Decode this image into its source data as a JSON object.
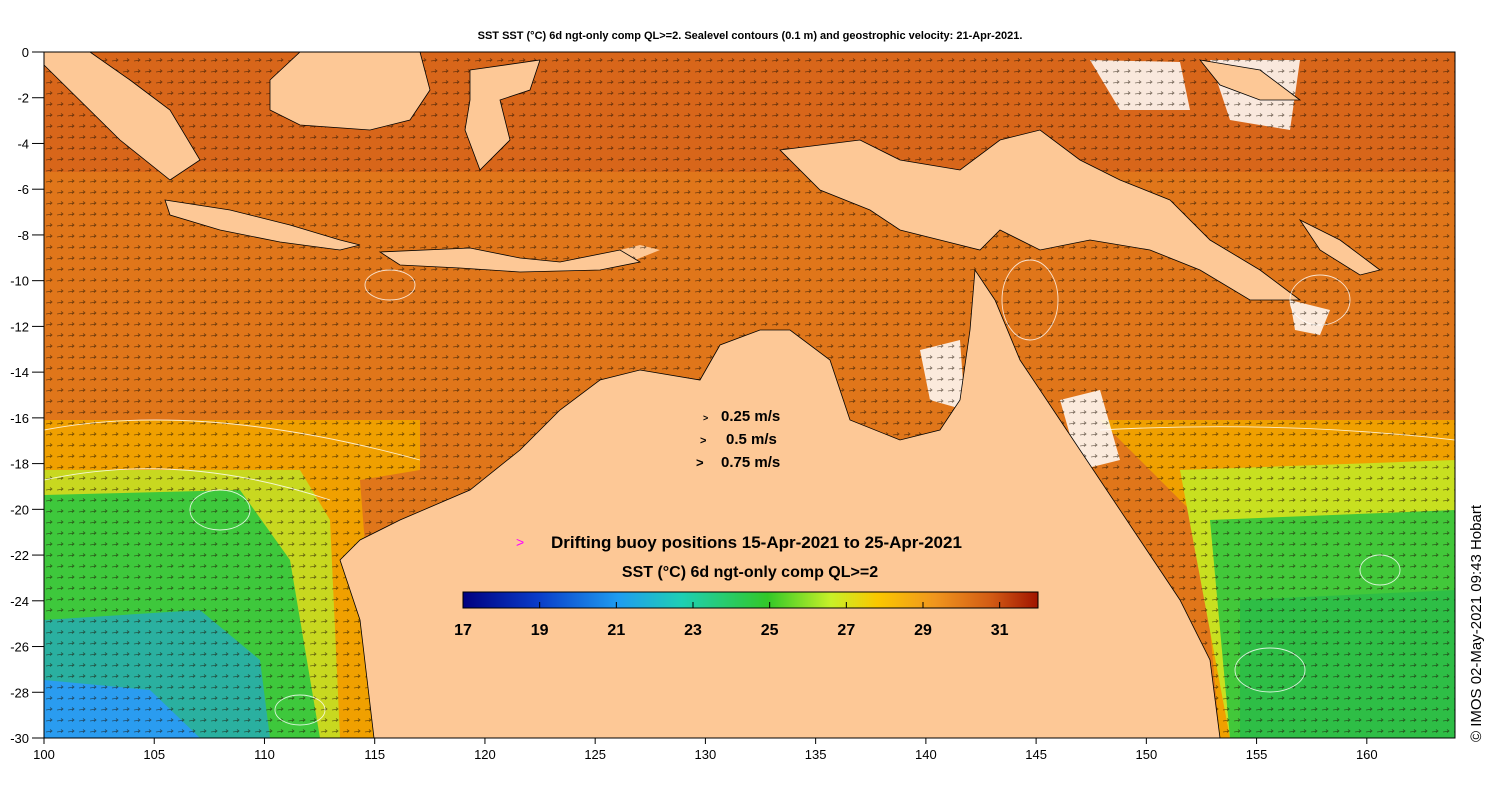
{
  "title": "SST SST (°C) 6d ngt-only comp QL>=2. Sealevel contours (0.1 m) and geostrophic velocity: 21-Apr-2021.",
  "credit": "© IMOS 02-May-2021 09:43 Hobart",
  "axes": {
    "lon_range": [
      100,
      164
    ],
    "lat_range": [
      -30,
      0
    ],
    "x_ticks": [
      "100",
      "105",
      "110",
      "115",
      "120",
      "125",
      "130",
      "135",
      "140",
      "145",
      "150",
      "155",
      "160"
    ],
    "y_ticks": [
      "0",
      "-2",
      "-4",
      "-6",
      "-8",
      "-10",
      "-12",
      "-14",
      "-16",
      "-18",
      "-20",
      "-22",
      "-24",
      "-26",
      "-28",
      "-30"
    ]
  },
  "velocity_legend": [
    {
      "symbol": ">",
      "label": "0.25 m/s"
    },
    {
      "symbol": ">",
      "label": "0.5 m/s"
    },
    {
      "symbol": ">",
      "label": "0.75 m/s"
    }
  ],
  "buoy_legend": {
    "symbol": ">",
    "label": "Drifting buoy positions 15-Apr-2021 to 25-Apr-2021",
    "color": "#ff00ff"
  },
  "colorbar": {
    "title": "SST (°C) 6d ngt-only comp QL>=2",
    "min": 17,
    "max": 32,
    "tick_labels": [
      "17",
      "19",
      "21",
      "23",
      "25",
      "27",
      "29",
      "31"
    ]
  },
  "colors": {
    "land": "#fdc896",
    "ocean_warm": "#e0761a",
    "ocean_mid": "#f5b800",
    "ocean_cool": "#2fb82f",
    "ocean_cold": "#2a9cf0"
  }
}
